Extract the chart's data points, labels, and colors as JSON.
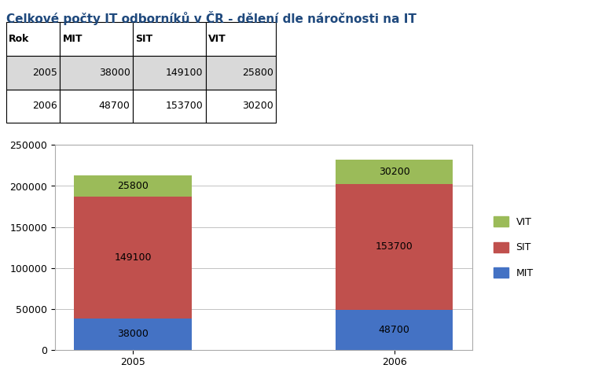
{
  "title": "Celkové počty IT odborníků v ČR - dělení dle náročnosti na IT",
  "years": [
    "2005",
    "2006"
  ],
  "MIT": [
    38000,
    48700
  ],
  "SIT": [
    149100,
    153700
  ],
  "VIT": [
    25800,
    30200
  ],
  "color_MIT": "#4472C4",
  "color_SIT": "#C0504D",
  "color_VIT": "#9BBB59",
  "ylim": [
    0,
    250000
  ],
  "yticks": [
    0,
    50000,
    100000,
    150000,
    200000,
    250000
  ],
  "bar_width": 0.45,
  "background_color": "#FFFFFF",
  "chart_bg": "#FFFFFF",
  "table_header_bg": "#FFFFFF",
  "table_row1_bg": "#D9D9D9",
  "table_row2_bg": "#FFFFFF",
  "table_headers": [
    "Rok",
    "MIT",
    "SIT",
    "VIT"
  ],
  "table_row1": [
    "2005",
    "38000",
    "149100",
    "25800"
  ],
  "table_row2": [
    "2006",
    "48700",
    "153700",
    "30200"
  ],
  "title_color": "#1F497D",
  "title_fontsize": 11,
  "label_fontsize": 9,
  "tick_fontsize": 9,
  "legend_fontsize": 9
}
